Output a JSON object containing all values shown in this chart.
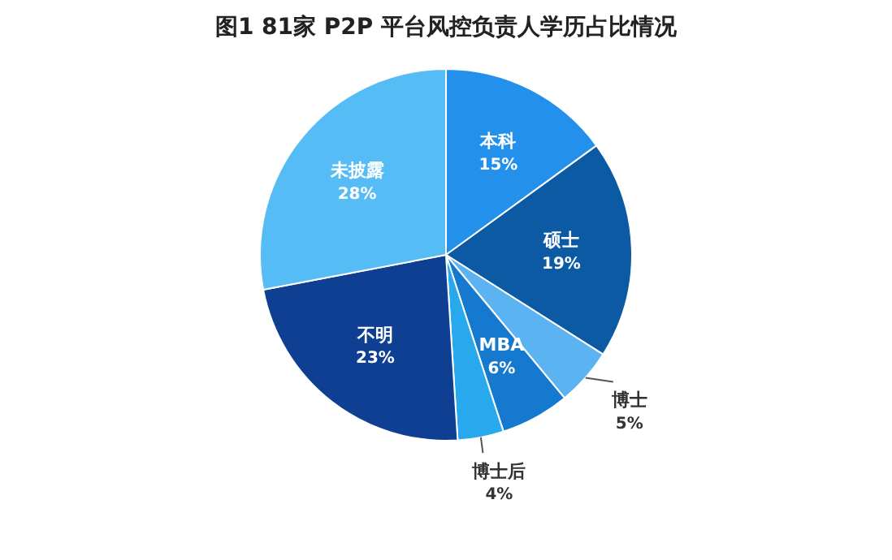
{
  "chart_data": {
    "type": "pie",
    "title": "图1  81家 P2P 平台风控负责人学历占比情况",
    "categories": [
      "本科",
      "硕士",
      "博士",
      "MBA",
      "博士后",
      "不明",
      "未披露"
    ],
    "values": [
      15,
      19,
      5,
      6,
      4,
      23,
      28
    ],
    "value_labels": [
      "15%",
      "19%",
      "5%",
      "6%",
      "4%",
      "23%",
      "28%"
    ],
    "colors": [
      "#2390eb",
      "#0b5aa3",
      "#5cb3f2",
      "#1579cf",
      "#28a9ee",
      "#0e3f93",
      "#55bcf6"
    ],
    "legend": false
  }
}
